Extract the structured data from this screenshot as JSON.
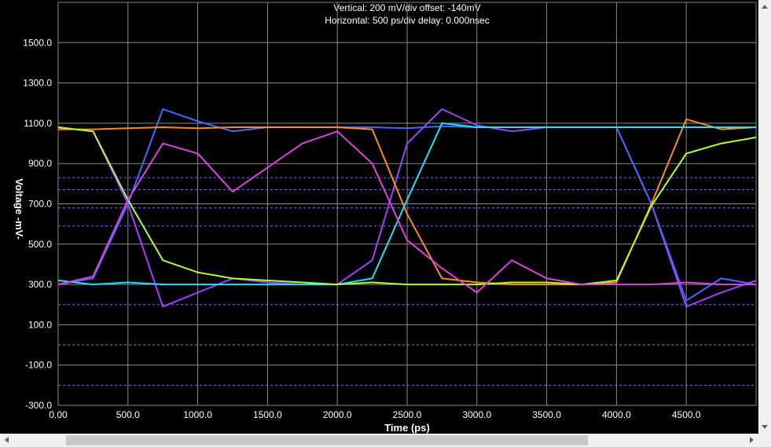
{
  "chart_data": {
    "type": "line",
    "title": "Vertical: 200 mV/div  offset: -140mV",
    "subtitle": "Horizontal: 500 ps/div  delay: 0.000nsec",
    "x_label": "Time  (ps)",
    "y_label": "Voltage  -mV-",
    "xlim": [
      0,
      5000
    ],
    "ylim": [
      -300,
      1700
    ],
    "xticks": [
      {
        "value": 0,
        "label": "0.00"
      },
      {
        "value": 500,
        "label": "500.0"
      },
      {
        "value": 1000,
        "label": "1000.0"
      },
      {
        "value": 1500,
        "label": "1500.0"
      },
      {
        "value": 2000,
        "label": "2000.0"
      },
      {
        "value": 2500,
        "label": "2500.0"
      },
      {
        "value": 3000,
        "label": "3000.0"
      },
      {
        "value": 3500,
        "label": "3500.0"
      },
      {
        "value": 4000,
        "label": "4000.0"
      },
      {
        "value": 4500,
        "label": "4500.0"
      }
    ],
    "yticks": [
      {
        "value": -300,
        "label": "-300.0"
      },
      {
        "value": -100,
        "label": "-100.0"
      },
      {
        "value": 100,
        "label": "100.0"
      },
      {
        "value": 300,
        "label": "300.0"
      },
      {
        "value": 500,
        "label": "500.0"
      },
      {
        "value": 700,
        "label": "700.0"
      },
      {
        "value": 900,
        "label": "900.0"
      },
      {
        "value": 1100,
        "label": "1100.0"
      },
      {
        "value": 1300,
        "label": "1300.0"
      },
      {
        "value": 1500,
        "label": "1500.0"
      }
    ],
    "grid": true,
    "reference_lines": [
      {
        "value": 830,
        "color": "#7070ff"
      },
      {
        "value": 770,
        "color": "#7070ff"
      },
      {
        "value": 680,
        "color": "#7070ff"
      },
      {
        "value": 590,
        "color": "#7070ff"
      },
      {
        "value": 200,
        "color": "#7070ff"
      },
      {
        "value": -200,
        "color": "#7070ff"
      },
      {
        "value": 0,
        "color": "#40c040"
      }
    ],
    "x": [
      0,
      250,
      500,
      750,
      1000,
      1250,
      1500,
      1750,
      2000,
      2250,
      2500,
      2750,
      3000,
      3250,
      3500,
      3750,
      4000,
      4250,
      4500,
      4750,
      5000
    ],
    "series": [
      {
        "color": "#a040ff",
        "values": [
          1080,
          1060,
          700,
          190,
          260,
          330,
          310,
          300,
          300,
          420,
          1000,
          1170,
          1090,
          1060,
          1080,
          1080,
          1080,
          700,
          190,
          260,
          320
        ]
      },
      {
        "color": "#3d6bff",
        "values": [
          300,
          330,
          700,
          1170,
          1110,
          1060,
          1080,
          1080,
          1080,
          1080,
          1075,
          1085,
          1080,
          1080,
          1080,
          1080,
          1080,
          700,
          220,
          330,
          300
        ]
      },
      {
        "color": "#ff8c1a",
        "values": [
          1070,
          1070,
          1075,
          1080,
          1075,
          1080,
          1080,
          1080,
          1080,
          1070,
          650,
          330,
          310,
          300,
          300,
          300,
          310,
          700,
          1120,
          1070,
          1080
        ]
      },
      {
        "color": "#1ee0ff",
        "values": [
          320,
          300,
          310,
          300,
          300,
          300,
          300,
          300,
          300,
          330,
          720,
          1100,
          1080,
          1080,
          1080,
          1080,
          1080,
          1080,
          1080,
          1080,
          1080
        ]
      },
      {
        "color": "#b0ff30",
        "values": [
          1080,
          1060,
          720,
          420,
          360,
          330,
          320,
          310,
          300,
          310,
          300,
          300,
          300,
          310,
          310,
          300,
          320,
          690,
          950,
          1000,
          1030
        ]
      },
      {
        "color": "#e040e0",
        "values": [
          300,
          340,
          720,
          1000,
          950,
          760,
          880,
          1000,
          1060,
          900,
          520,
          380,
          260,
          420,
          330,
          300,
          300,
          300,
          310,
          300,
          300
        ]
      }
    ]
  }
}
